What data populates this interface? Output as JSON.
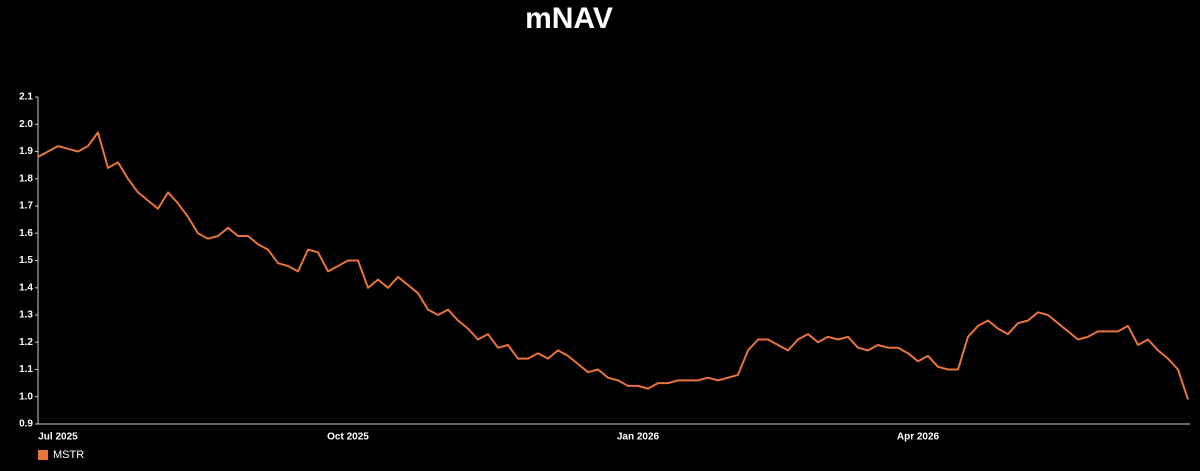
{
  "chart_data": {
    "type": "line",
    "title": "mNAV",
    "categories": [
      null,
      null,
      "Jul 2025",
      null,
      null,
      null,
      null,
      null,
      null,
      null,
      null,
      null,
      null,
      null,
      null,
      null,
      null,
      null,
      null,
      null,
      null,
      null,
      null,
      null,
      null,
      null,
      null,
      null,
      null,
      null,
      null,
      "Oct 2025",
      null,
      null,
      null,
      null,
      null,
      null,
      null,
      null,
      null,
      null,
      null,
      null,
      null,
      null,
      null,
      null,
      null,
      null,
      null,
      null,
      null,
      null,
      null,
      null,
      null,
      null,
      null,
      null,
      "Jan 2026",
      null,
      null,
      null,
      null,
      null,
      null,
      null,
      null,
      null,
      null,
      null,
      null,
      null,
      null,
      null,
      null,
      null,
      null,
      null,
      null,
      null,
      null,
      null,
      null,
      null,
      null,
      null,
      "Apr 2026",
      null,
      null,
      null,
      null,
      null,
      null,
      null,
      null,
      null,
      null,
      null,
      null,
      null,
      null,
      null,
      null,
      null,
      null,
      null,
      null,
      null,
      null,
      null,
      null,
      null,
      null,
      null
    ],
    "series": [
      {
        "name": "MSTR",
        "color": "#e8743b",
        "values": [
          1.88,
          1.9,
          1.92,
          1.91,
          1.9,
          1.92,
          1.97,
          1.84,
          1.86,
          1.8,
          1.75,
          1.72,
          1.69,
          1.75,
          1.71,
          1.66,
          1.6,
          1.58,
          1.59,
          1.62,
          1.59,
          1.59,
          1.56,
          1.54,
          1.49,
          1.48,
          1.46,
          1.54,
          1.53,
          1.46,
          1.48,
          1.5,
          1.5,
          1.4,
          1.43,
          1.4,
          1.44,
          1.41,
          1.38,
          1.32,
          1.3,
          1.32,
          1.28,
          1.25,
          1.21,
          1.23,
          1.18,
          1.19,
          1.14,
          1.14,
          1.16,
          1.14,
          1.17,
          1.15,
          1.12,
          1.09,
          1.1,
          1.07,
          1.06,
          1.04,
          1.04,
          1.03,
          1.05,
          1.05,
          1.06,
          1.06,
          1.06,
          1.07,
          1.06,
          1.07,
          1.08,
          1.17,
          1.21,
          1.21,
          1.19,
          1.17,
          1.21,
          1.23,
          1.2,
          1.22,
          1.21,
          1.22,
          1.18,
          1.17,
          1.19,
          1.18,
          1.18,
          1.16,
          1.13,
          1.15,
          1.11,
          1.1,
          1.1,
          1.22,
          1.26,
          1.28,
          1.25,
          1.23,
          1.27,
          1.28,
          1.31,
          1.3,
          1.27,
          1.24,
          1.21,
          1.22,
          1.24,
          1.24,
          1.24,
          1.26,
          1.19,
          1.21,
          1.17,
          1.14,
          1.1,
          0.99
        ]
      }
    ],
    "ylim": [
      0.9,
      2.1
    ],
    "yticks": [
      0.9,
      {
        "value": 1,
        "label": "1.0"
      },
      1.1,
      1.2,
      1.3,
      1.4,
      1.5,
      1.6,
      1.7,
      1.8,
      1.9,
      {
        "value": 2,
        "label": "2.0"
      },
      2.1
    ],
    "grid": false,
    "legend": "bottom-left"
  }
}
